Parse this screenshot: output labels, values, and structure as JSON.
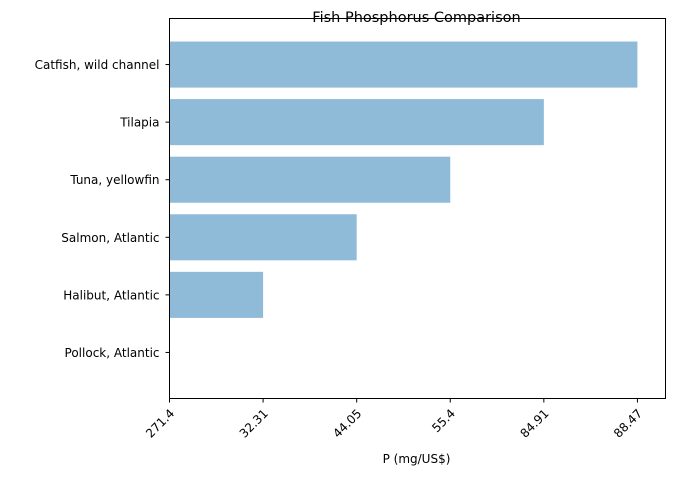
{
  "chart_data": {
    "type": "bar",
    "orientation": "horizontal",
    "title": "Fish Phosphorus Comparison",
    "xlabel": "P (mg/US$)",
    "ylabel": "",
    "categories": [
      "Pollock, Atlantic",
      "Halibut, Atlantic",
      "Salmon, Atlantic",
      "Tuna, yellowfin",
      "Tilapia",
      "Catfish, wild channel"
    ],
    "values": [
      0,
      1,
      2,
      3,
      4,
      5
    ],
    "x_tick_labels": [
      "271.4",
      "32.31",
      "44.05",
      "55.4",
      "84.91",
      "88.47"
    ],
    "xlim": [
      0,
      5.3
    ],
    "bar_color": "#8fbad8",
    "grid": false,
    "legend": "none"
  }
}
